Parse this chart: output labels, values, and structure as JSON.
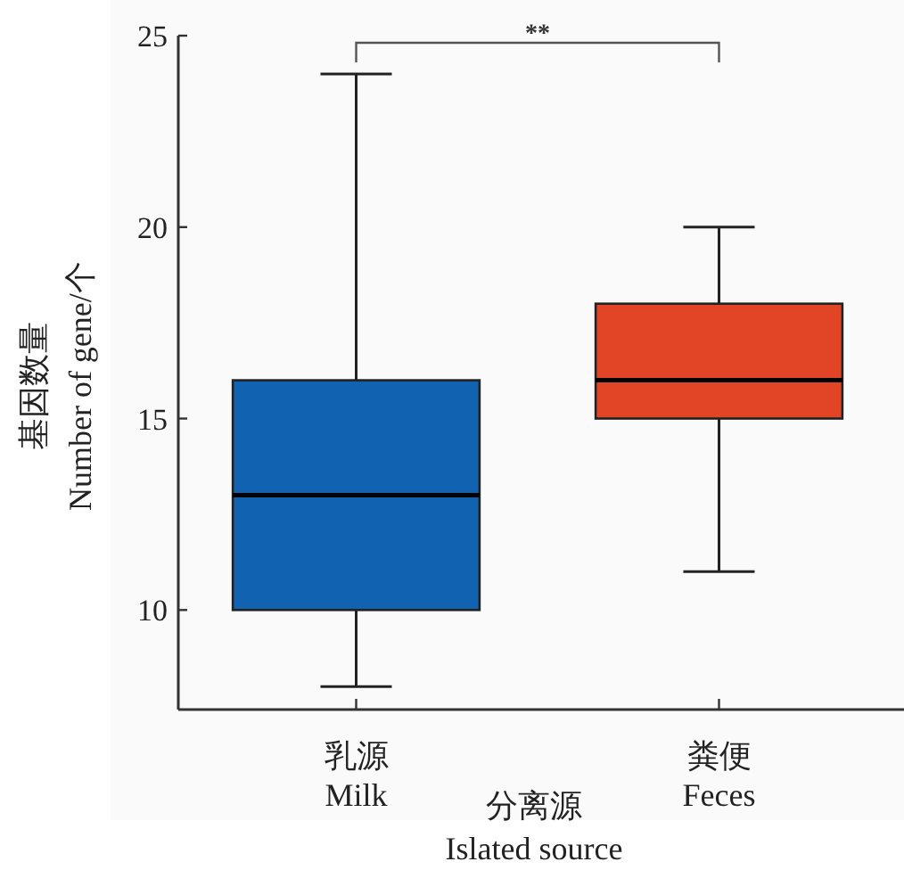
{
  "chart_data": {
    "type": "box",
    "categories": [
      "乳源\nMilk",
      "粪便\nFeces"
    ],
    "xlabel": "分离源\nIslated source",
    "ylabel": "基因数量\nNumber of gene/个",
    "series": [
      {
        "colors": [
          "#1162b0",
          "#e24426"
        ],
        "boxes": [
          {
            "low": 8,
            "q1": 10,
            "median": 13,
            "q3": 16,
            "high": 24
          },
          {
            "low": 11,
            "q1": 15,
            "median": 16,
            "q3": 18,
            "high": 20
          }
        ]
      }
    ],
    "ylim": [
      7.4,
      25
    ],
    "yticks": [
      10,
      15,
      20,
      25
    ],
    "annotations": [
      "**"
    ]
  }
}
